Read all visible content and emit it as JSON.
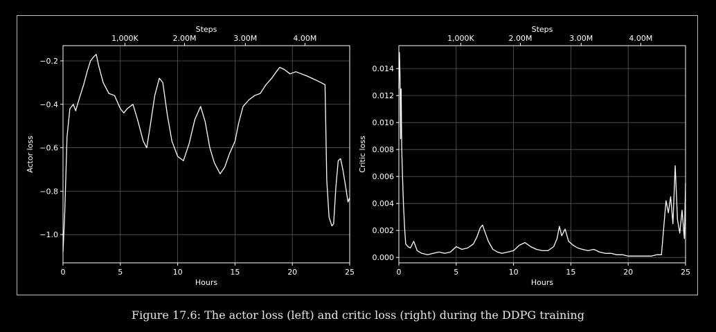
{
  "caption": "Figure 17.6: The actor loss (left) and critic loss (right) during the DDPG training",
  "chart_data": [
    {
      "type": "line",
      "xlabel": "Hours",
      "ylabel": "Actor loss",
      "top_axis_label": "Steps",
      "xlim": [
        0,
        25
      ],
      "ylim": [
        -1.13,
        -0.13
      ],
      "xticks": [
        0,
        5,
        10,
        15,
        20,
        25
      ],
      "xtick_labels": [
        "0",
        "5",
        "10",
        "15",
        "20",
        "25"
      ],
      "yticks": [
        -1.0,
        -0.8,
        -0.6,
        -0.4,
        -0.2
      ],
      "ytick_labels": [
        "−1.0",
        "−0.8",
        "−0.6",
        "−0.4",
        "−0.2"
      ],
      "top_ticks_hours": [
        5.4,
        10.6,
        15.9,
        21.1
      ],
      "top_tick_labels": [
        "1,000K",
        "2.00M",
        "3.00M",
        "4.00M"
      ],
      "grid": true,
      "series_color": "#ffffff",
      "series": [
        {
          "x": [
            0,
            0.15,
            0.35,
            0.6,
            0.9,
            1.1,
            1.5,
            1.8,
            2.1,
            2.4,
            2.7,
            2.9,
            3.1,
            3.5,
            4.0,
            4.5,
            5.0,
            5.3,
            5.6,
            6.1,
            6.5,
            7.0,
            7.3,
            7.6,
            8.0,
            8.4,
            8.7,
            9.1,
            9.5,
            10.0,
            10.5,
            11.0,
            11.5,
            12.0,
            12.4,
            12.8,
            13.2,
            13.7,
            14.1,
            14.5,
            15.0,
            15.3,
            15.7,
            16.2,
            16.7,
            17.2,
            17.7,
            18.2,
            18.6,
            18.9,
            19.3,
            19.8,
            20.3,
            20.8,
            21.3,
            21.7,
            22.1,
            22.5,
            22.85,
            23.0,
            23.2,
            23.45,
            23.6,
            23.8,
            24.0,
            24.2,
            24.4,
            24.65,
            24.85,
            25.0
          ],
          "y": [
            -1.08,
            -0.9,
            -0.55,
            -0.42,
            -0.4,
            -0.43,
            -0.36,
            -0.31,
            -0.25,
            -0.2,
            -0.18,
            -0.17,
            -0.22,
            -0.3,
            -0.35,
            -0.36,
            -0.42,
            -0.44,
            -0.42,
            -0.4,
            -0.47,
            -0.57,
            -0.6,
            -0.5,
            -0.36,
            -0.28,
            -0.3,
            -0.45,
            -0.57,
            -0.64,
            -0.66,
            -0.58,
            -0.47,
            -0.41,
            -0.48,
            -0.6,
            -0.67,
            -0.72,
            -0.69,
            -0.63,
            -0.57,
            -0.49,
            -0.41,
            -0.38,
            -0.36,
            -0.35,
            -0.31,
            -0.28,
            -0.25,
            -0.23,
            -0.24,
            -0.26,
            -0.25,
            -0.26,
            -0.27,
            -0.28,
            -0.29,
            -0.3,
            -0.31,
            -0.75,
            -0.92,
            -0.96,
            -0.95,
            -0.78,
            -0.66,
            -0.65,
            -0.7,
            -0.78,
            -0.85,
            -0.83
          ]
        }
      ]
    },
    {
      "type": "line",
      "xlabel": "Hours",
      "ylabel": "Critic loss",
      "top_axis_label": "Steps",
      "xlim": [
        0,
        25
      ],
      "ylim": [
        -0.0004,
        0.0157
      ],
      "xticks": [
        0,
        5,
        10,
        15,
        20,
        25
      ],
      "xtick_labels": [
        "0",
        "5",
        "10",
        "15",
        "20",
        "25"
      ],
      "yticks": [
        0.0,
        0.002,
        0.004,
        0.006,
        0.008,
        0.01,
        0.012,
        0.014
      ],
      "ytick_labels": [
        "0.000",
        "0.002",
        "0.004",
        "0.006",
        "0.008",
        "0.010",
        "0.012",
        "0.014"
      ],
      "top_ticks_hours": [
        5.4,
        10.6,
        15.9,
        21.1
      ],
      "top_tick_labels": [
        "1,000K",
        "2.00M",
        "3.00M",
        "4.00M"
      ],
      "grid": true,
      "series_color": "#ffffff",
      "series": [
        {
          "x": [
            0,
            0.05,
            0.1,
            0.15,
            0.2,
            0.25,
            0.3,
            0.35,
            0.4,
            0.5,
            0.6,
            0.8,
            1.0,
            1.3,
            1.6,
            2.0,
            2.5,
            3.0,
            3.5,
            4.0,
            4.5,
            5.0,
            5.5,
            6.0,
            6.5,
            6.8,
            7.1,
            7.3,
            7.5,
            7.8,
            8.2,
            8.6,
            9.0,
            9.5,
            10.0,
            10.5,
            11.0,
            11.5,
            12.0,
            12.5,
            13.0,
            13.5,
            13.8,
            14.0,
            14.2,
            14.5,
            14.8,
            15.2,
            15.6,
            16.0,
            16.5,
            17.0,
            17.5,
            18.0,
            18.5,
            19.0,
            19.5,
            20.0,
            20.5,
            21.0,
            21.5,
            22.0,
            22.5,
            22.9,
            23.1,
            23.3,
            23.5,
            23.7,
            23.9,
            24.1,
            24.3,
            24.5,
            24.7,
            24.9,
            25.0
          ],
          "y": [
            0.0125,
            0.0152,
            0.0135,
            0.0088,
            0.0125,
            0.0082,
            0.0065,
            0.0052,
            0.004,
            0.0022,
            0.001,
            0.0008,
            0.0007,
            0.0012,
            0.0005,
            0.0003,
            0.0002,
            0.0003,
            0.0004,
            0.0003,
            0.0004,
            0.0008,
            0.0006,
            0.0007,
            0.001,
            0.0015,
            0.0022,
            0.0024,
            0.0019,
            0.0012,
            0.0006,
            0.0004,
            0.0003,
            0.0004,
            0.0005,
            0.0009,
            0.0011,
            0.0008,
            0.0006,
            0.0005,
            0.0005,
            0.0008,
            0.0014,
            0.0023,
            0.0016,
            0.0021,
            0.0012,
            0.0009,
            0.0007,
            0.0006,
            0.0005,
            0.0006,
            0.0004,
            0.0003,
            0.0003,
            0.0002,
            0.0002,
            0.0001,
            0.0001,
            0.0001,
            0.0001,
            0.0001,
            0.0002,
            0.0002,
            0.0022,
            0.0042,
            0.0033,
            0.0045,
            0.0025,
            0.0068,
            0.0028,
            0.0018,
            0.0035,
            0.0014,
            0.0055
          ]
        }
      ]
    }
  ]
}
